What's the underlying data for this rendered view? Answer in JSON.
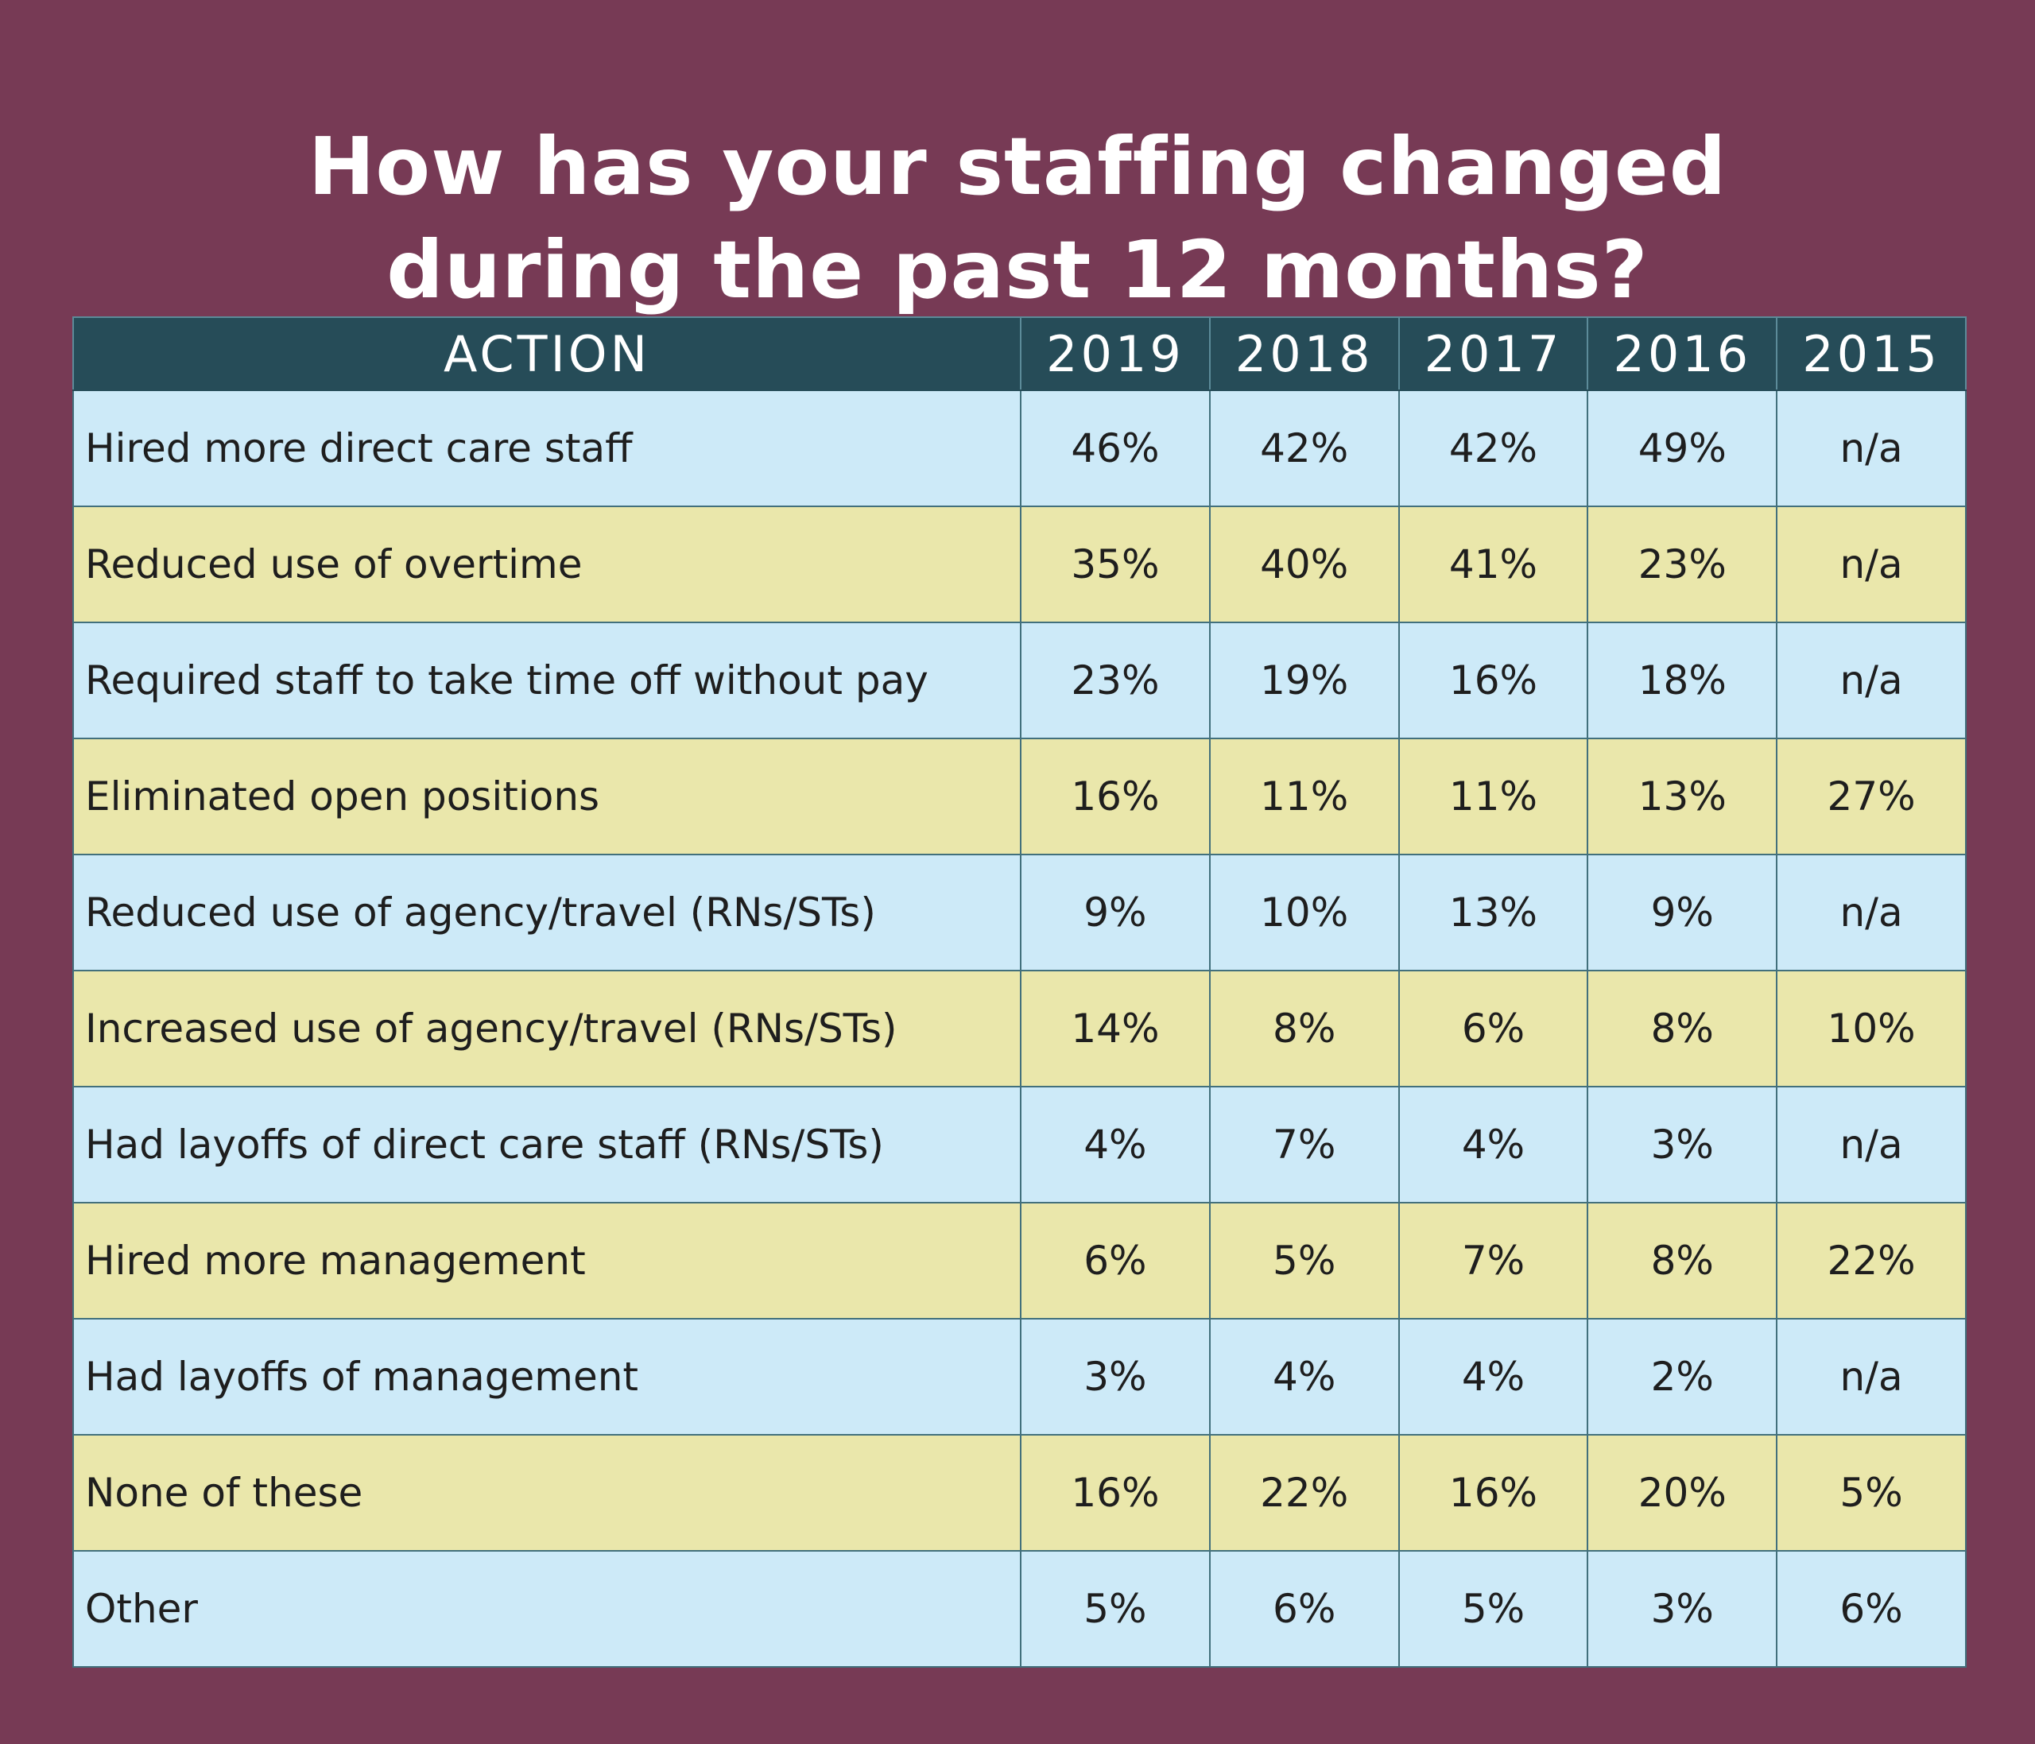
{
  "title": {
    "line1": "How has your staffing changed",
    "line2": "during the past 12 months?"
  },
  "colors": {
    "background": "#773a55",
    "header": "#264c58",
    "row_blue": "#cdeaf8",
    "row_yellow": "#eae7ab"
  },
  "chart_data": {
    "type": "table",
    "title": "How has your staffing changed during the past 12 months?",
    "columns": [
      "ACTION",
      "2019",
      "2018",
      "2017",
      "2016",
      "2015"
    ],
    "rows": [
      {
        "action": "Hired more direct care staff",
        "values": [
          "46%",
          "42%",
          "42%",
          "49%",
          "n/a"
        ]
      },
      {
        "action": "Reduced use of overtime",
        "values": [
          "35%",
          "40%",
          "41%",
          "23%",
          "n/a"
        ]
      },
      {
        "action": "Required staff to take time off without pay",
        "values": [
          "23%",
          "19%",
          "16%",
          "18%",
          "n/a"
        ]
      },
      {
        "action": "Eliminated open positions",
        "values": [
          "16%",
          "11%",
          "11%",
          "13%",
          "27%"
        ]
      },
      {
        "action": "Reduced use of agency/travel (RNs/STs)",
        "values": [
          "9%",
          "10%",
          "13%",
          "9%",
          "n/a"
        ]
      },
      {
        "action": "Increased use of agency/travel (RNs/STs)",
        "values": [
          "14%",
          "8%",
          "6%",
          "8%",
          "10%"
        ]
      },
      {
        "action": "Had layoffs of direct care staff (RNs/STs)",
        "values": [
          "4%",
          "7%",
          "4%",
          "3%",
          "n/a"
        ]
      },
      {
        "action": "Hired more management",
        "values": [
          "6%",
          "5%",
          "7%",
          "8%",
          "22%"
        ]
      },
      {
        "action": "Had layoffs of management",
        "values": [
          "3%",
          "4%",
          "4%",
          "2%",
          "n/a"
        ]
      },
      {
        "action": "None of these",
        "values": [
          "16%",
          "22%",
          "16%",
          "20%",
          "5%"
        ]
      },
      {
        "action": "Other",
        "values": [
          "5%",
          "6%",
          "5%",
          "3%",
          "6%"
        ]
      }
    ]
  }
}
